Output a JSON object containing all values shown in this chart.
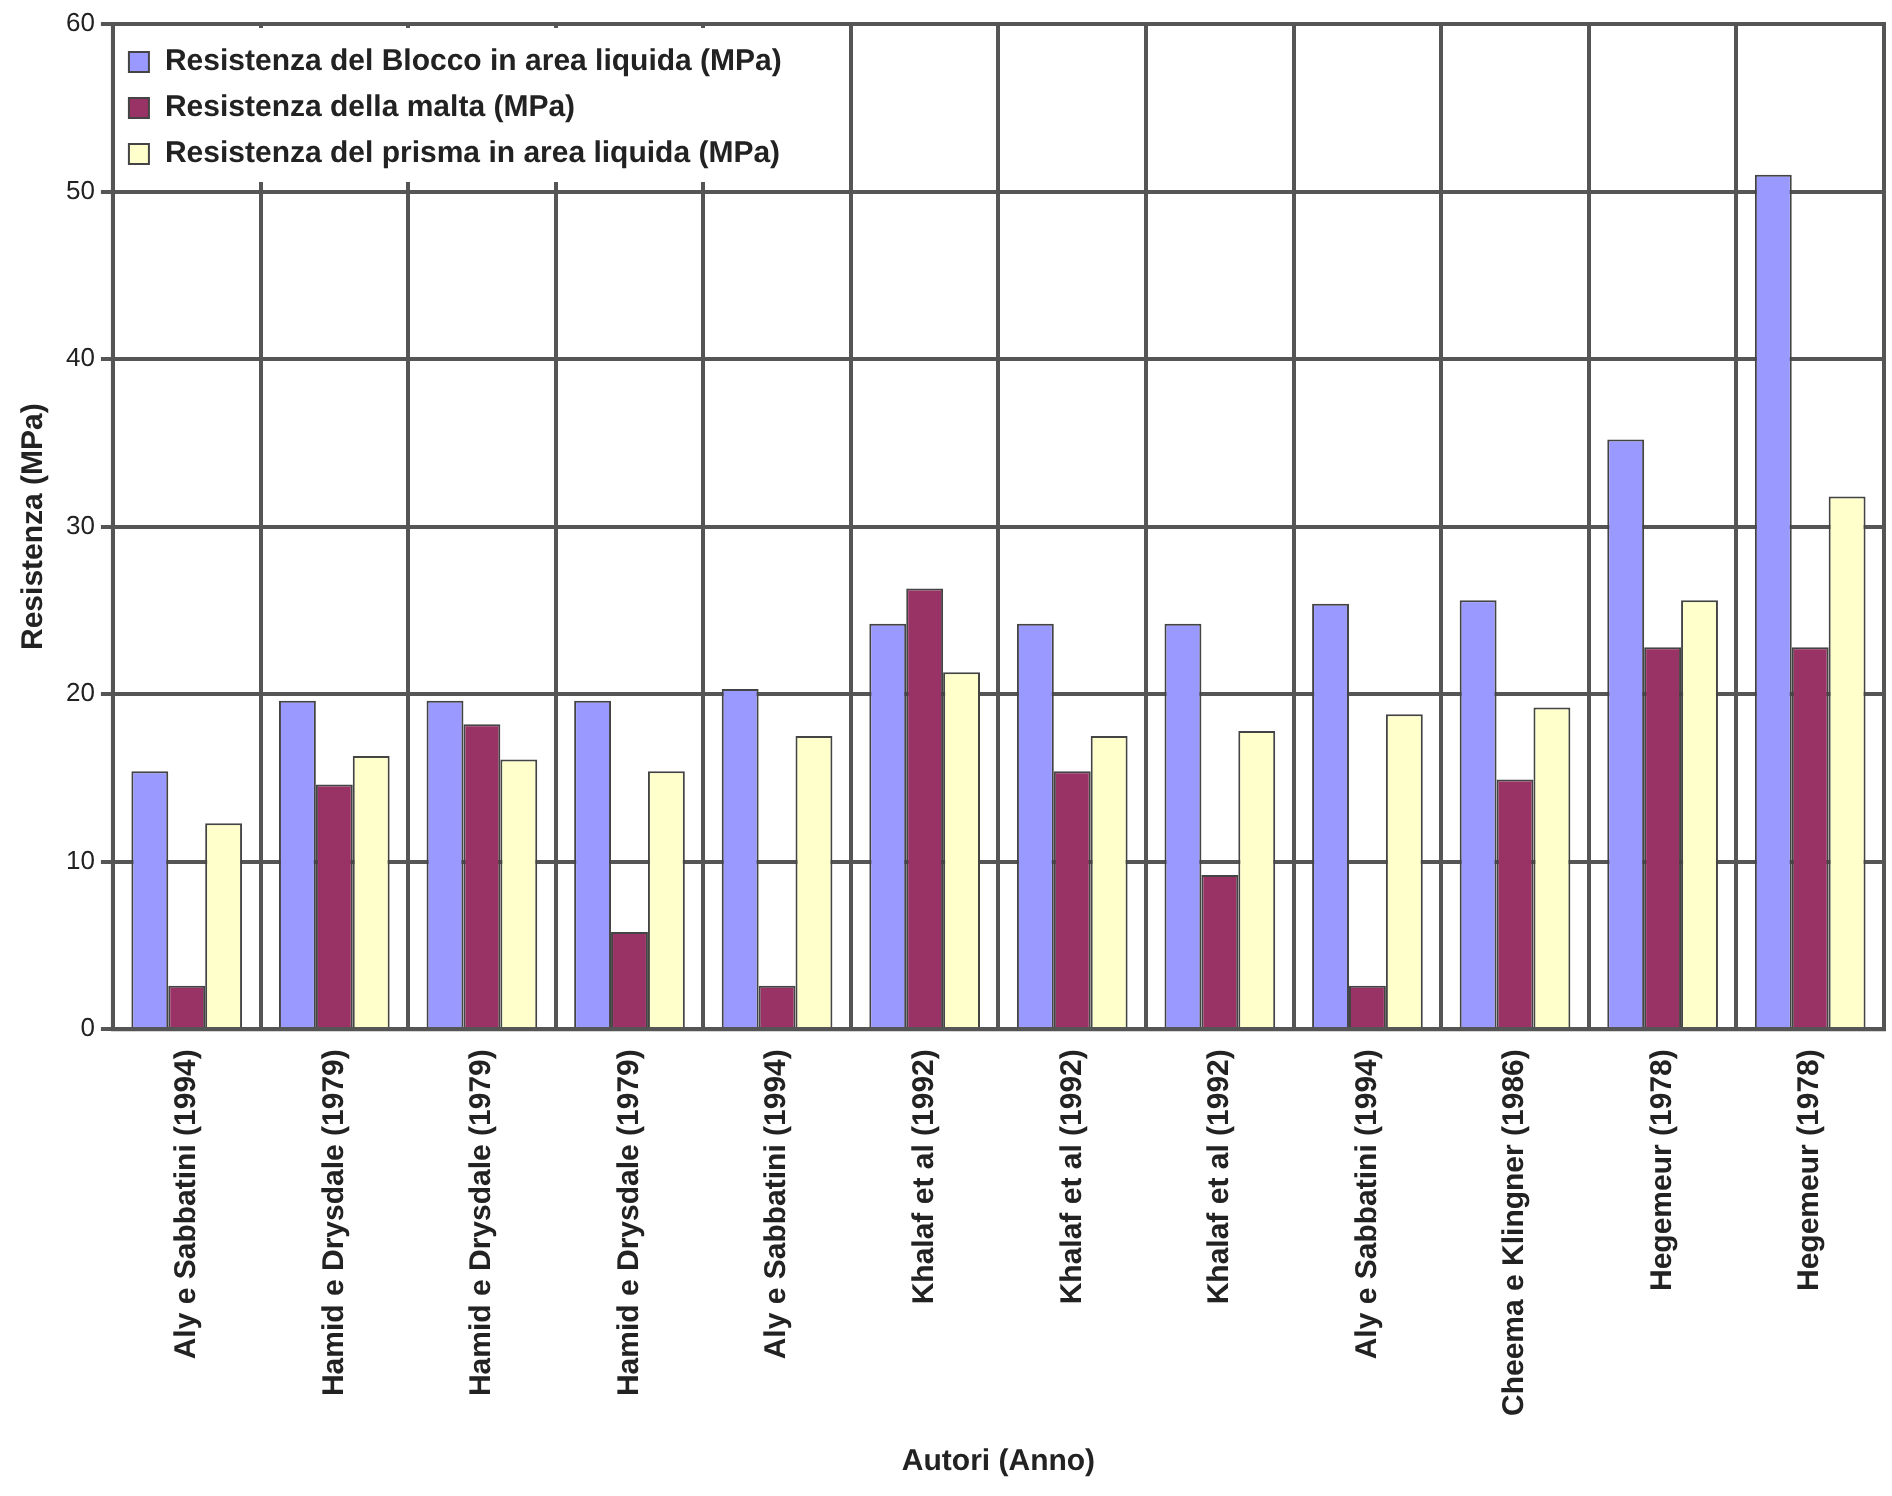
{
  "chart_data": {
    "type": "bar",
    "xlabel": "Autori (Anno)",
    "ylabel": "Resistenza (MPa)",
    "categories": [
      "Aly e Sabbatini (1994)",
      "Hamid e Drysdale (1979)",
      "Hamid e Drysdale (1979)",
      "Hamid e Drysdale (1979)",
      "Aly e Sabbatini (1994)",
      "Khalaf et al (1992)",
      "Khalaf et al (1992)",
      "Khalaf et al (1992)",
      "Aly e Sabbatini (1994)",
      "Cheema e Klingner (1986)",
      "Hegemeur (1978)",
      "Hegemeur (1978)"
    ],
    "series": [
      {
        "name": "Resistenza del Blocco in area liquida (MPa)",
        "color": "#9999ff",
        "values": [
          15.4,
          19.6,
          19.6,
          19.6,
          20.3,
          24.2,
          24.2,
          24.2,
          25.4,
          25.6,
          35.2,
          51.0
        ]
      },
      {
        "name": "Resistenza della malta (MPa)",
        "color": "#993366",
        "values": [
          2.6,
          14.6,
          18.2,
          5.8,
          2.6,
          26.3,
          15.4,
          9.2,
          2.6,
          14.9,
          22.8,
          22.8
        ]
      },
      {
        "name": "Resistenza del prisma in area liquida (MPa)",
        "color": "#ffffcc",
        "values": [
          12.3,
          16.3,
          16.1,
          15.4,
          17.5,
          21.3,
          17.5,
          17.8,
          18.8,
          19.2,
          25.6,
          31.8
        ]
      }
    ],
    "ylim": [
      0,
      60
    ],
    "yticks": [
      0,
      10,
      20,
      30,
      40,
      50,
      60
    ],
    "grid": true,
    "legend": "top left"
  }
}
